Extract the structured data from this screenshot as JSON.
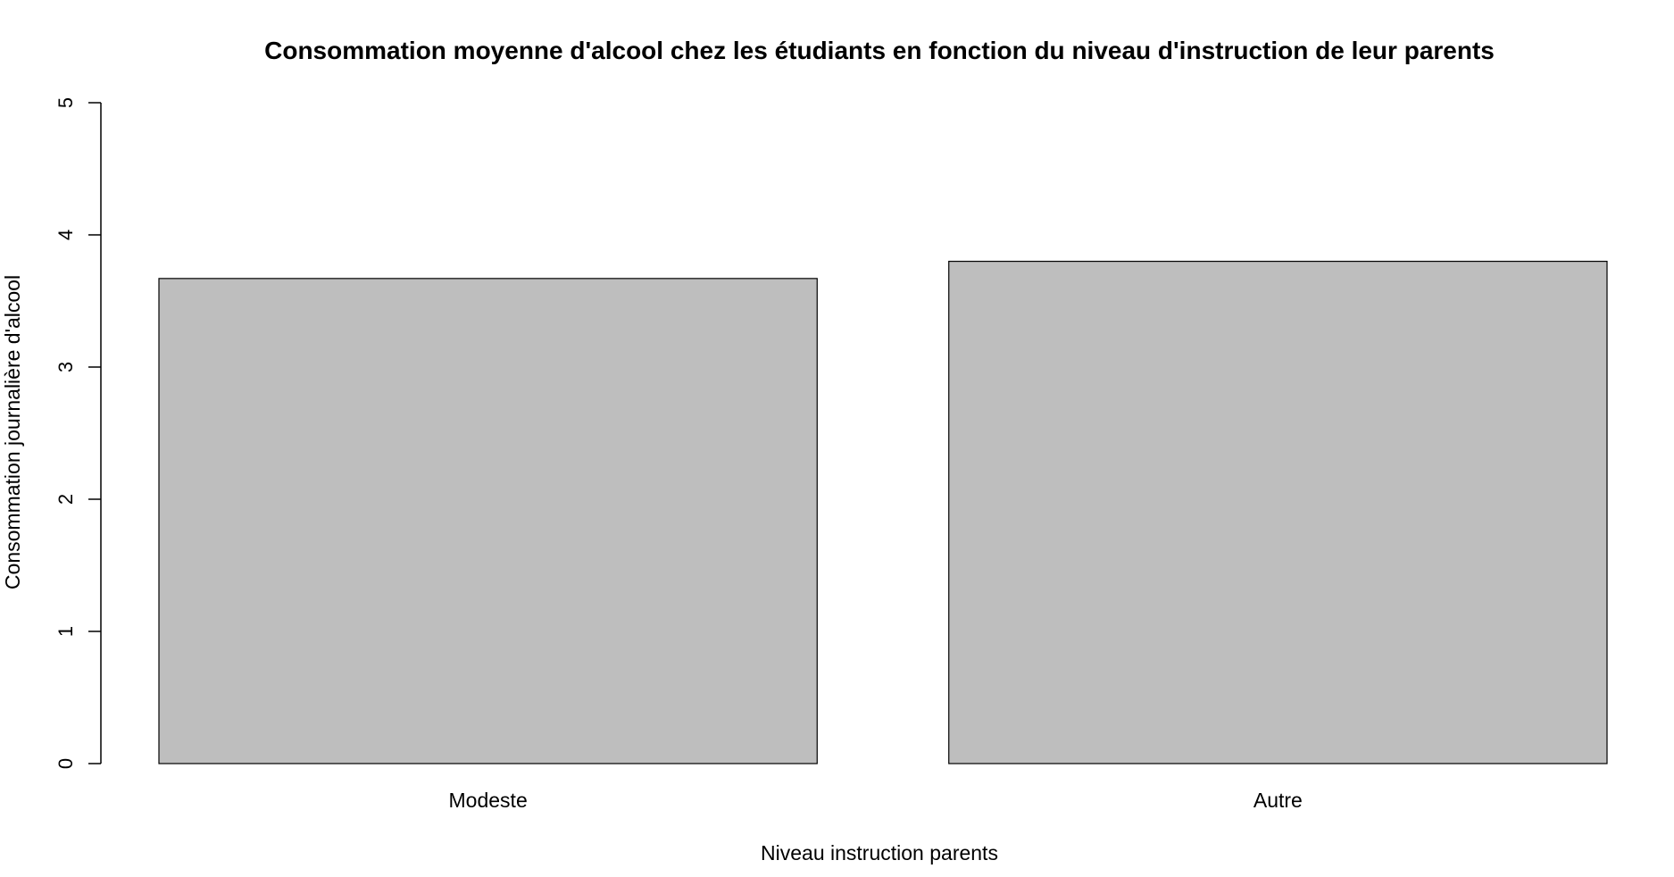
{
  "chart_data": {
    "type": "bar",
    "title": "Consommation moyenne d'alcool chez les étudiants en fonction du niveau d'instruction de leur parents",
    "xlabel": "Niveau instruction parents",
    "ylabel": "Consommation journalière d'alcool",
    "categories": [
      "Modeste",
      "Autre"
    ],
    "values": [
      3.67,
      3.8
    ],
    "ylim": [
      0,
      5
    ],
    "yticks": [
      "0",
      "1",
      "2",
      "3",
      "4",
      "5"
    ],
    "bar_color": "#bebebe",
    "grid": false,
    "legend": "none"
  }
}
